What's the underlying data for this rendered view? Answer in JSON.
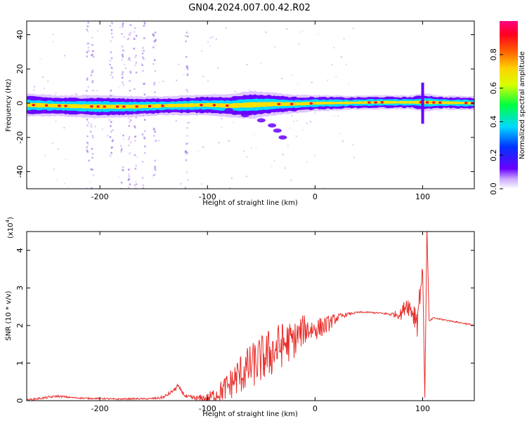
{
  "title": "GN04.2024.007.00.42.R02",
  "colors": {
    "frame": "#000000",
    "snr_line": "#e8302c",
    "ridge_outer": "#6a00ff",
    "ridge_mid": "#00d9ff",
    "ridge_inner": "#ffe000",
    "ridge_peak": "#ff0020",
    "speckle": "#9a66e6"
  },
  "chart_data": [
    {
      "type": "heatmap",
      "panel": "spectrogram",
      "xlabel": "Height of straight line (km)",
      "ylabel": "Frequency (Hz)",
      "xlim": [
        -268,
        148
      ],
      "ylim": [
        -50,
        48
      ],
      "xticks": [
        -200,
        -100,
        0,
        100
      ],
      "xtick_labels": [
        "-200",
        "-100",
        "0",
        "100"
      ],
      "yticks": [
        -40,
        -20,
        0,
        20,
        40
      ],
      "ytick_labels": [
        "-40",
        "-20",
        "0",
        "20",
        "40"
      ],
      "grid": false,
      "colorbar": {
        "label": "Normalized spectral amplitude",
        "range": [
          0,
          1
        ],
        "ticks": [
          0.0,
          0.2,
          0.4,
          0.6,
          0.8
        ],
        "tick_labels": [
          "0.0",
          "0.2",
          "0.4",
          "0.6",
          "0.8"
        ],
        "colormap": [
          "#ffffff",
          "#6a00ff",
          "#0033ff",
          "#00d9ff",
          "#00ff40",
          "#d9ff00",
          "#ffd000",
          "#ff6000",
          "#ff0020",
          "#ff0080"
        ]
      },
      "ridge": {
        "x": [
          -268,
          -240,
          -200,
          -170,
          -140,
          -100,
          -80,
          -60,
          -40,
          -20,
          0,
          30,
          60,
          90,
          100,
          120,
          148
        ],
        "center_hz": [
          -1,
          -1.5,
          -2,
          -2,
          -1.5,
          -1,
          -1.5,
          -1,
          -0.5,
          -0.5,
          0,
          0.2,
          0.5,
          0.5,
          0.5,
          0.3,
          0
        ],
        "halfwidth_hz": [
          5,
          4.5,
          5,
          4.5,
          4,
          4.5,
          5,
          6,
          5,
          4,
          3.5,
          3,
          3,
          3,
          4,
          3,
          3
        ]
      },
      "branch": {
        "x": [
          -80,
          -65,
          -50,
          -40,
          -35,
          -30
        ],
        "y_hz": [
          -4,
          -7,
          -10,
          -13,
          -16,
          -20
        ]
      },
      "vertical_streaks_x": [
        -212,
        -208,
        -190,
        -180,
        -173,
        -168,
        -160,
        -150,
        -120
      ],
      "spike_x": 100,
      "spike_range_hz": [
        -12,
        12
      ]
    },
    {
      "type": "line",
      "panel": "snr",
      "xlabel": "Height of straight line (km)",
      "ylabel": "SNR (10 * v/v)",
      "yscale_label": "(x10",
      "yscale_exponent": "4",
      "xlim": [
        -268,
        148
      ],
      "ylim": [
        0,
        4.5
      ],
      "xticks": [
        -200,
        -100,
        0,
        100
      ],
      "xtick_labels": [
        "-200",
        "-100",
        "0",
        "100"
      ],
      "yticks": [
        0,
        1,
        2,
        3,
        4
      ],
      "ytick_labels": [
        "0",
        "1",
        "2",
        "3",
        "4"
      ],
      "grid": false,
      "series": [
        {
          "x": [
            -268,
            -250,
            -240,
            -225,
            -210,
            -200,
            -185,
            -170,
            -155,
            -145,
            -140,
            -130,
            -128,
            -120,
            -110,
            -100,
            -90,
            -80,
            -70,
            -60,
            -50,
            -40,
            -30,
            -20,
            -10,
            0,
            10,
            20,
            30,
            40,
            50,
            60,
            70,
            80,
            85,
            90,
            95,
            100,
            102,
            104,
            106,
            110,
            120,
            130,
            140,
            148
          ],
          "y": [
            0.02,
            0.08,
            0.12,
            0.08,
            0.06,
            0.06,
            0.04,
            0.05,
            0.05,
            0.07,
            0.1,
            0.3,
            0.4,
            0.1,
            0.06,
            0.05,
            0.2,
            0.4,
            0.7,
            0.9,
            1.1,
            1.3,
            1.5,
            1.6,
            1.9,
            1.9,
            2.0,
            2.2,
            2.3,
            2.35,
            2.35,
            2.33,
            2.3,
            2.3,
            2.6,
            2.4,
            2.2,
            3.5,
            0.1,
            4.6,
            2.1,
            2.2,
            2.15,
            2.1,
            2.05,
            2.0
          ],
          "noise_amplitude": [
            0.02,
            0.03,
            0.03,
            0.02,
            0.02,
            0.02,
            0.02,
            0.02,
            0.02,
            0.03,
            0.05,
            0.05,
            0.05,
            0.05,
            0.08,
            0.15,
            0.25,
            0.4,
            0.55,
            0.6,
            0.65,
            0.7,
            0.6,
            0.5,
            0.4,
            0.3,
            0.25,
            0.12,
            0.04,
            0.02,
            0.02,
            0.02,
            0.04,
            0.15,
            0.25,
            0.3,
            0.5,
            0.1,
            0.1,
            0.1,
            0.04,
            0.02,
            0.02,
            0.02,
            0.02,
            0.02
          ]
        }
      ]
    }
  ]
}
